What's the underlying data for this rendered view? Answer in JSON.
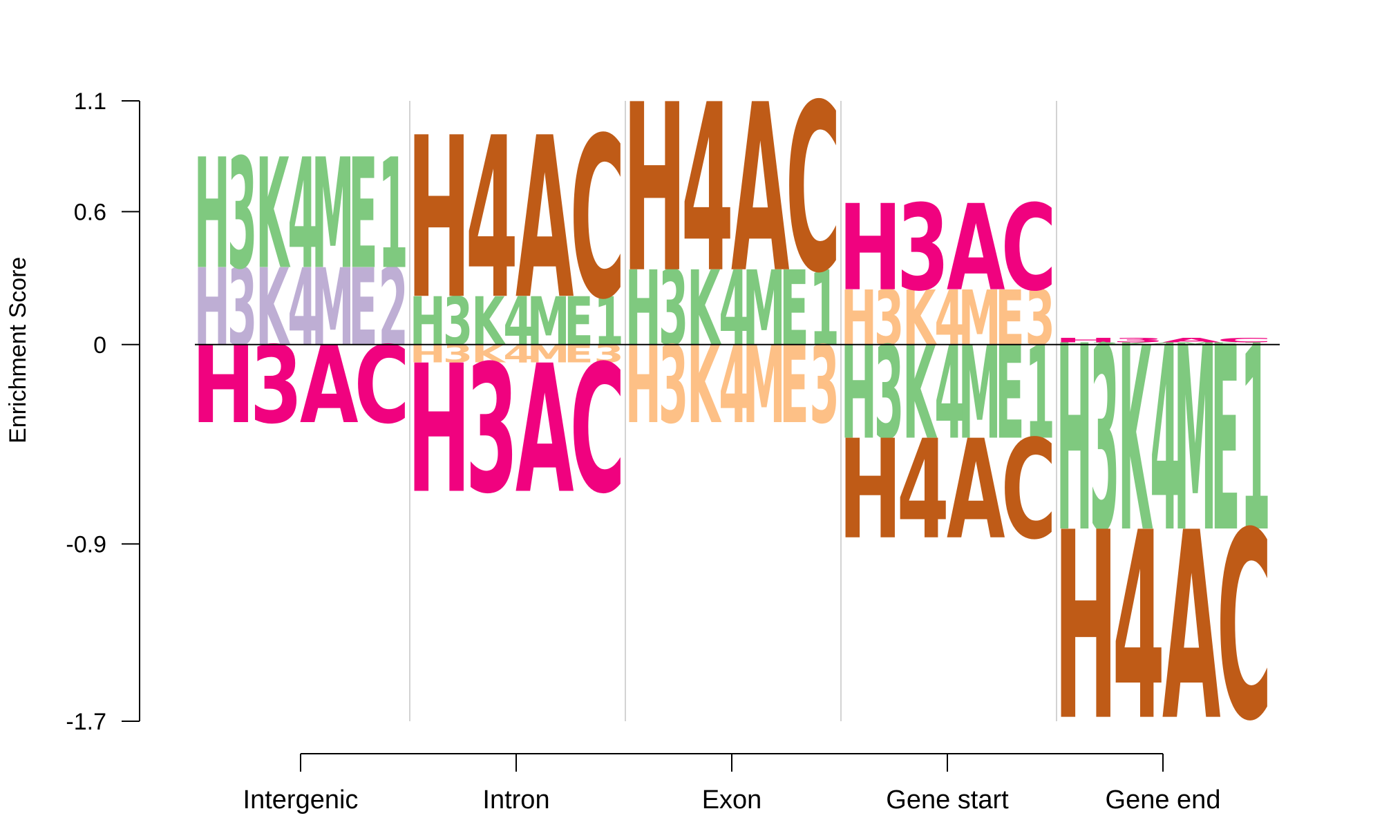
{
  "chart_data": {
    "type": "sequence-logo",
    "ylabel": "Enrichment Score",
    "ylim": [
      -1.7,
      1.1
    ],
    "yticks": [
      {
        "value": 1.1,
        "label": "1.1"
      },
      {
        "value": 0.6,
        "label": "0.6"
      },
      {
        "value": 0,
        "label": "0"
      },
      {
        "value": -0.9,
        "label": "-0.9"
      },
      {
        "value": -1.7,
        "label": "-1.7"
      }
    ],
    "categories": [
      "Intergenic",
      "Intron",
      "Exon",
      "Gene start",
      "Gene end"
    ],
    "colors": {
      "H3K4ME1": "#7fc97f",
      "H3K4ME2": "#beaed4",
      "H3K4ME3": "#fdc086",
      "H3AC": "#f0027f",
      "H4AC": "#bf5b17"
    },
    "stacks": [
      {
        "category": "Intergenic",
        "positive": [
          {
            "mark": "H3K4ME2",
            "value": 0.35
          },
          {
            "mark": "H3K4ME1",
            "value": 0.5
          }
        ],
        "negative": [
          {
            "mark": "H3AC",
            "value": 0.35
          }
        ]
      },
      {
        "category": "Intron",
        "positive": [
          {
            "mark": "H3K4ME1",
            "value": 0.22
          },
          {
            "mark": "H4AC",
            "value": 0.73
          }
        ],
        "negative": [
          {
            "mark": "H3K4ME3",
            "value": 0.08
          },
          {
            "mark": "H3AC",
            "value": 0.58
          }
        ]
      },
      {
        "category": "Exon",
        "positive": [
          {
            "mark": "H3K4ME1",
            "value": 0.34
          },
          {
            "mark": "H4AC",
            "value": 0.76
          }
        ],
        "negative": [
          {
            "mark": "H3K4ME3",
            "value": 0.35
          }
        ]
      },
      {
        "category": "Gene start",
        "positive": [
          {
            "mark": "H3K4ME3",
            "value": 0.25
          },
          {
            "mark": "H3AC",
            "value": 0.39
          }
        ],
        "negative": [
          {
            "mark": "H3K4ME1",
            "value": 0.42
          },
          {
            "mark": "H4AC",
            "value": 0.45
          }
        ]
      },
      {
        "category": "Gene end",
        "positive": [
          {
            "mark": "H3K4ME1",
            "value": 0.01
          },
          {
            "mark": "H3AC",
            "value": 0.02
          }
        ],
        "negative": [
          {
            "mark": "H3K4ME1",
            "value": 0.83
          },
          {
            "mark": "H4AC",
            "value": 0.85
          }
        ]
      }
    ]
  }
}
